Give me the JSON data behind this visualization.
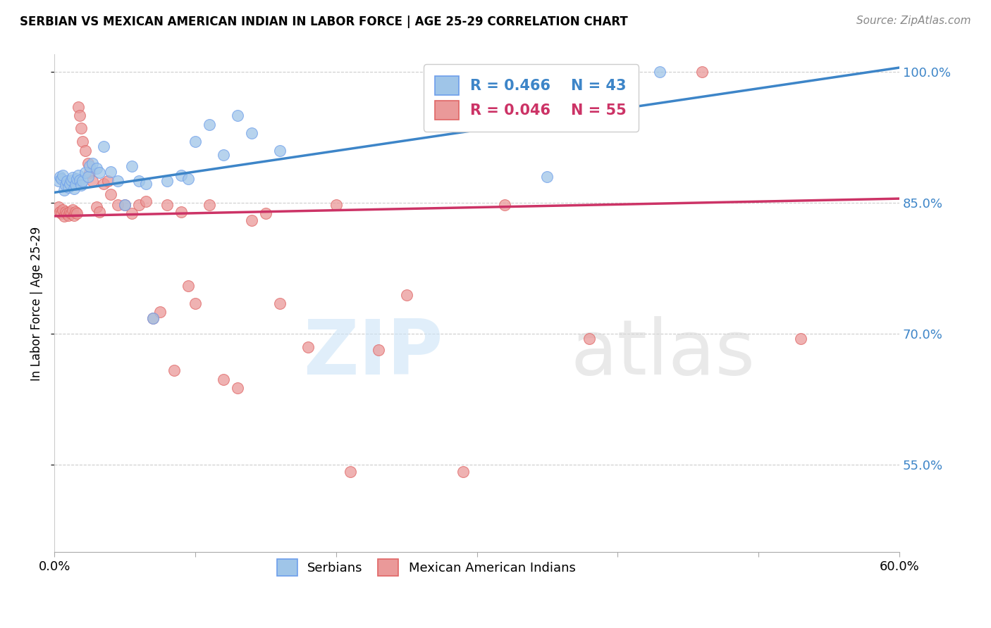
{
  "title": "SERBIAN VS MEXICAN AMERICAN INDIAN IN LABOR FORCE | AGE 25-29 CORRELATION CHART",
  "source": "Source: ZipAtlas.com",
  "ylabel": "In Labor Force | Age 25-29",
  "xlim": [
    0.0,
    0.6
  ],
  "ylim": [
    0.45,
    1.02
  ],
  "xticks": [
    0.0,
    0.1,
    0.2,
    0.3,
    0.4,
    0.5,
    0.6
  ],
  "xticklabels": [
    "0.0%",
    "",
    "",
    "",
    "",
    "",
    "60.0%"
  ],
  "yticks": [
    0.55,
    0.7,
    0.85,
    1.0
  ],
  "yticklabels": [
    "55.0%",
    "70.0%",
    "85.0%",
    "100.0%"
  ],
  "blue_R": 0.466,
  "blue_N": 43,
  "pink_R": 0.046,
  "pink_N": 55,
  "blue_color": "#9fc5e8",
  "pink_color": "#ea9999",
  "blue_edge_color": "#6d9eeb",
  "pink_edge_color": "#e06666",
  "blue_line_color": "#3d85c8",
  "pink_line_color": "#cc3366",
  "legend_label_blue": "Serbians",
  "legend_label_pink": "Mexican American Indians",
  "blue_line_x0": 0.0,
  "blue_line_y0": 0.862,
  "blue_line_x1": 0.6,
  "blue_line_y1": 1.005,
  "pink_line_x0": 0.0,
  "pink_line_y0": 0.835,
  "pink_line_x1": 0.6,
  "pink_line_y1": 0.855,
  "serbian_x": [
    0.003,
    0.004,
    0.005,
    0.006,
    0.007,
    0.008,
    0.009,
    0.01,
    0.011,
    0.012,
    0.013,
    0.014,
    0.015,
    0.016,
    0.017,
    0.018,
    0.019,
    0.02,
    0.022,
    0.024,
    0.025,
    0.027,
    0.03,
    0.032,
    0.035,
    0.04,
    0.045,
    0.05,
    0.055,
    0.06,
    0.065,
    0.07,
    0.08,
    0.09,
    0.095,
    0.1,
    0.11,
    0.12,
    0.13,
    0.14,
    0.16,
    0.35,
    0.43
  ],
  "serbian_y": [
    0.875,
    0.88,
    0.878,
    0.882,
    0.865,
    0.87,
    0.875,
    0.868,
    0.872,
    0.876,
    0.879,
    0.866,
    0.871,
    0.878,
    0.882,
    0.876,
    0.87,
    0.875,
    0.885,
    0.88,
    0.892,
    0.895,
    0.89,
    0.885,
    0.915,
    0.886,
    0.875,
    0.848,
    0.892,
    0.875,
    0.872,
    0.718,
    0.875,
    0.882,
    0.878,
    0.92,
    0.94,
    0.905,
    0.95,
    0.93,
    0.91,
    0.88,
    1.0
  ],
  "mexican_x": [
    0.003,
    0.004,
    0.005,
    0.006,
    0.007,
    0.008,
    0.009,
    0.01,
    0.011,
    0.012,
    0.013,
    0.014,
    0.015,
    0.016,
    0.017,
    0.018,
    0.019,
    0.02,
    0.022,
    0.024,
    0.025,
    0.027,
    0.03,
    0.032,
    0.035,
    0.038,
    0.04,
    0.045,
    0.05,
    0.055,
    0.06,
    0.065,
    0.07,
    0.075,
    0.08,
    0.085,
    0.09,
    0.095,
    0.1,
    0.11,
    0.12,
    0.13,
    0.14,
    0.15,
    0.16,
    0.18,
    0.2,
    0.21,
    0.23,
    0.25,
    0.29,
    0.32,
    0.38,
    0.46,
    0.53
  ],
  "mexican_y": [
    0.845,
    0.84,
    0.838,
    0.842,
    0.835,
    0.84,
    0.838,
    0.836,
    0.84,
    0.838,
    0.842,
    0.836,
    0.84,
    0.838,
    0.96,
    0.95,
    0.936,
    0.92,
    0.91,
    0.895,
    0.885,
    0.875,
    0.845,
    0.84,
    0.872,
    0.875,
    0.86,
    0.848,
    0.848,
    0.838,
    0.848,
    0.852,
    0.718,
    0.725,
    0.848,
    0.658,
    0.84,
    0.755,
    0.735,
    0.848,
    0.648,
    0.638,
    0.83,
    0.838,
    0.735,
    0.685,
    0.848,
    0.542,
    0.682,
    0.745,
    0.542,
    0.848,
    0.695,
    1.0,
    0.695
  ]
}
